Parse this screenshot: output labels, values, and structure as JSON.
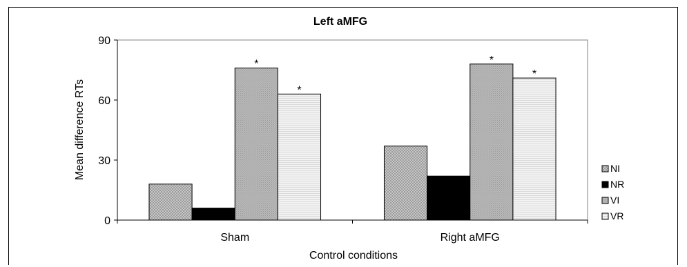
{
  "chart_data": {
    "type": "bar",
    "title": "Left aMFG",
    "xlabel": "Control conditions",
    "ylabel": "Mean difference RTs",
    "categories": [
      "Sham",
      "Right aMFG"
    ],
    "ylim": [
      0,
      90
    ],
    "yticks": [
      0,
      30,
      60,
      90
    ],
    "series": [
      {
        "name": "NI",
        "values": [
          18,
          37
        ],
        "color": "#c8c8c8",
        "pattern": "crosshatch"
      },
      {
        "name": "NR",
        "values": [
          6,
          22
        ],
        "color": "#000000",
        "pattern": "solid"
      },
      {
        "name": "VI",
        "values": [
          76,
          78
        ],
        "color": "#b4b4b4",
        "pattern": "fine"
      },
      {
        "name": "VR",
        "values": [
          63,
          71
        ],
        "color": "#efefef",
        "pattern": "lines"
      }
    ],
    "annotations": [
      {
        "series": "VI",
        "category": "Sham",
        "text": "*"
      },
      {
        "series": "VR",
        "category": "Sham",
        "text": "*"
      },
      {
        "series": "VI",
        "category": "Right aMFG",
        "text": "*"
      },
      {
        "series": "VR",
        "category": "Right aMFG",
        "text": "*"
      }
    ],
    "legend_position": "right",
    "grid": false
  }
}
